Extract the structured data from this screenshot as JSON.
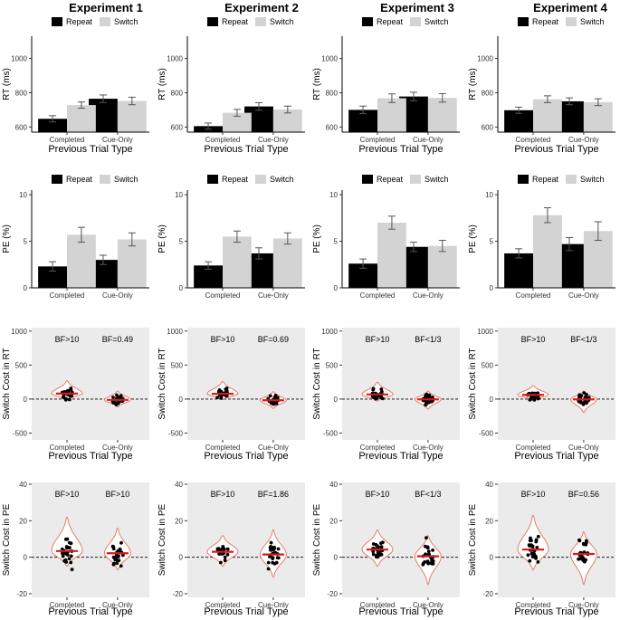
{
  "figure": {
    "columns": [
      "Experiment 1",
      "Experiment 2",
      "Experiment 3",
      "Experiment 4"
    ],
    "colors": {
      "repeat": "#000000",
      "switch": "#d3d3d3",
      "panel_bg": "#ebebeb",
      "violin_stroke": "#e8705a",
      "mean_line": "#d7191c",
      "points": "#000000"
    }
  },
  "chart_data": [
    {
      "type": "bar",
      "name": "rt-bars",
      "ylabel": "RT (ms)",
      "xlabel": "Previous Trial Type",
      "categories": [
        "Completed",
        "Cue-Only"
      ],
      "legend": [
        "Repeat",
        "Switch"
      ],
      "legend_position": "top",
      "ylim": [
        570,
        1130
      ],
      "yticks": [
        600,
        800,
        1000
      ],
      "grid": false,
      "panels": [
        {
          "experiment": "Experiment 1",
          "series": [
            {
              "name": "Repeat",
              "values": [
                648,
                765
              ],
              "errors": [
                18,
                22
              ]
            },
            {
              "name": "Switch",
              "values": [
                728,
                752
              ],
              "errors": [
                18,
                22
              ]
            }
          ]
        },
        {
          "experiment": "Experiment 2",
          "series": [
            {
              "name": "Repeat",
              "values": [
                605,
                720
              ],
              "errors": [
                18,
                22
              ]
            },
            {
              "name": "Switch",
              "values": [
                683,
                702
              ],
              "errors": [
                20,
                20
              ]
            }
          ]
        },
        {
          "experiment": "Experiment 3",
          "series": [
            {
              "name": "Repeat",
              "values": [
                700,
                778
              ],
              "errors": [
                22,
                25
              ]
            },
            {
              "name": "Switch",
              "values": [
                768,
                770
              ],
              "errors": [
                25,
                25
              ]
            }
          ]
        },
        {
          "experiment": "Experiment 4",
          "series": [
            {
              "name": "Repeat",
              "values": [
                698,
                750
              ],
              "errors": [
                18,
                20
              ]
            },
            {
              "name": "Switch",
              "values": [
                762,
                745
              ],
              "errors": [
                20,
                20
              ]
            }
          ]
        }
      ]
    },
    {
      "type": "bar",
      "name": "pe-bars",
      "ylabel": "PE (%)",
      "xlabel": "",
      "categories": [
        "Completed",
        "Cue-Only"
      ],
      "legend": [
        "Repeat",
        "Switch"
      ],
      "legend_position": "top",
      "ylim": [
        0,
        10.5
      ],
      "yticks": [
        0,
        5,
        10
      ],
      "grid": false,
      "panels": [
        {
          "experiment": "Experiment 1",
          "series": [
            {
              "name": "Repeat",
              "values": [
                2.3,
                3.0
              ],
              "errors": [
                0.5,
                0.5
              ]
            },
            {
              "name": "Switch",
              "values": [
                5.7,
                5.2
              ],
              "errors": [
                0.8,
                0.7
              ]
            }
          ]
        },
        {
          "experiment": "Experiment 2",
          "series": [
            {
              "name": "Repeat",
              "values": [
                2.4,
                3.7
              ],
              "errors": [
                0.4,
                0.6
              ]
            },
            {
              "name": "Switch",
              "values": [
                5.5,
                5.3
              ],
              "errors": [
                0.6,
                0.6
              ]
            }
          ]
        },
        {
          "experiment": "Experiment 3",
          "series": [
            {
              "name": "Repeat",
              "values": [
                2.6,
                4.4
              ],
              "errors": [
                0.5,
                0.5
              ]
            },
            {
              "name": "Switch",
              "values": [
                7.0,
                4.5
              ],
              "errors": [
                0.7,
                0.6
              ]
            }
          ]
        },
        {
          "experiment": "Experiment 4",
          "series": [
            {
              "name": "Repeat",
              "values": [
                3.7,
                4.7
              ],
              "errors": [
                0.5,
                0.7
              ]
            },
            {
              "name": "Switch",
              "values": [
                7.8,
                6.1
              ],
              "errors": [
                0.8,
                1.0
              ]
            }
          ]
        }
      ]
    },
    {
      "type": "violin",
      "name": "rt-cost",
      "ylabel": "Switch Cost in RT",
      "xlabel": "Previous Trial Type",
      "categories": [
        "Completed",
        "Cue-Only"
      ],
      "ylim": [
        -600,
        1050
      ],
      "yticks": [
        -500,
        0,
        500,
        1000
      ],
      "reference_line": 0,
      "panels": [
        {
          "experiment": "Experiment 1",
          "bf": [
            "BF>10",
            "BF=0.49"
          ],
          "means": [
            80,
            -12
          ],
          "ranges": [
            [
              -10,
              270
            ],
            [
              -120,
              120
            ]
          ]
        },
        {
          "experiment": "Experiment 2",
          "bf": [
            "BF>10",
            "BF=0.69"
          ],
          "means": [
            78,
            -18
          ],
          "ranges": [
            [
              -10,
              260
            ],
            [
              -140,
              110
            ]
          ]
        },
        {
          "experiment": "Experiment 3",
          "bf": [
            "BF>10",
            "BF<1/3"
          ],
          "means": [
            68,
            -5
          ],
          "ranges": [
            [
              -30,
              250
            ],
            [
              -150,
              120
            ]
          ]
        },
        {
          "experiment": "Experiment 4",
          "bf": [
            "BF>10",
            "BF<1/3"
          ],
          "means": [
            62,
            -5
          ],
          "ranges": [
            [
              -20,
              200
            ],
            [
              -200,
              120
            ]
          ]
        }
      ]
    },
    {
      "type": "violin",
      "name": "pe-cost",
      "ylabel": "Switch Cost in PE",
      "xlabel": "Previous Trial Type",
      "categories": [
        "Completed",
        "Cue-Only"
      ],
      "ylim": [
        -22,
        41
      ],
      "yticks": [
        -20,
        0,
        20,
        40
      ],
      "reference_line": 0,
      "panels": [
        {
          "experiment": "Experiment 1",
          "bf": [
            "BF>10",
            "BF>10"
          ],
          "means": [
            3.4,
            2.2
          ],
          "ranges": [
            [
              -5,
              22
            ],
            [
              -7,
              16
            ]
          ]
        },
        {
          "experiment": "Experiment 2",
          "bf": [
            "BF>10",
            "BF=1.86"
          ],
          "means": [
            3.0,
            1.5
          ],
          "ranges": [
            [
              -5,
              12
            ],
            [
              -11,
              15
            ]
          ]
        },
        {
          "experiment": "Experiment 3",
          "bf": [
            "BF>10",
            "BF<1/3"
          ],
          "means": [
            4.2,
            0.5
          ],
          "ranges": [
            [
              -5,
              15
            ],
            [
              -15,
              12
            ]
          ]
        },
        {
          "experiment": "Experiment 4",
          "bf": [
            "BF>10",
            "BF=0.56"
          ],
          "means": [
            4.2,
            1.8
          ],
          "ranges": [
            [
              -7,
              23
            ],
            [
              -15,
              14
            ]
          ]
        }
      ]
    }
  ]
}
